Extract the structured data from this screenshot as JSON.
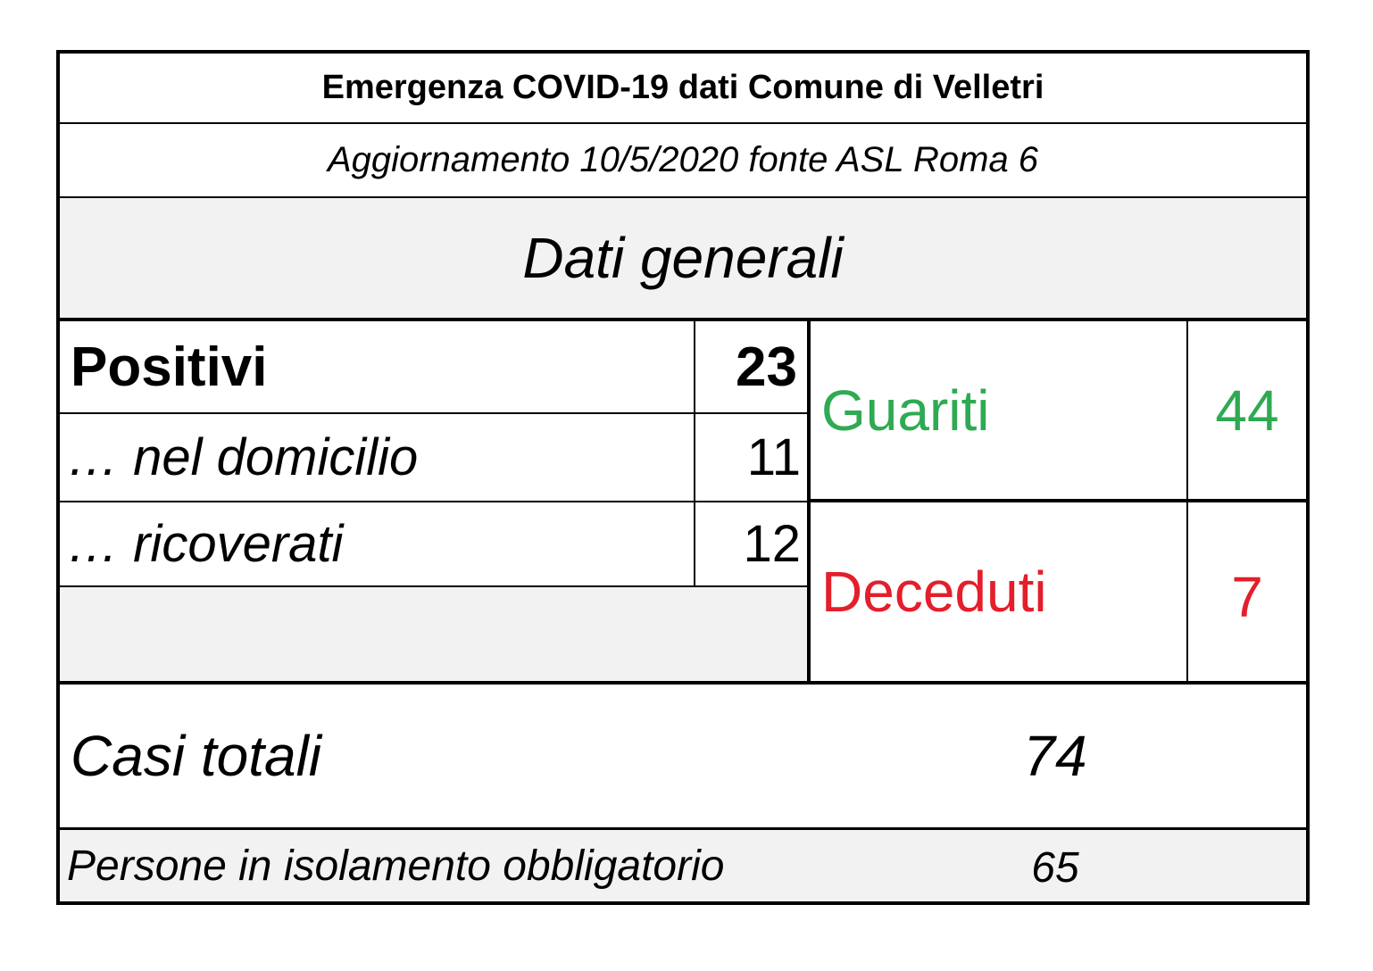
{
  "title": "Emergenza COVID-19 dati Comune di Velletri",
  "subtitle": "Aggiornamento 10/5/2020 fonte ASL Roma 6",
  "section": "Dati generali",
  "positivi": {
    "label": "Positivi",
    "value": "23"
  },
  "domicilio": {
    "label": "… nel domicilio",
    "value": "11"
  },
  "ricoverati": {
    "label": "… ricoverati",
    "value": "12"
  },
  "guariti": {
    "label": "Guariti",
    "value": "44"
  },
  "deceduti": {
    "label": "Deceduti",
    "value": "7"
  },
  "casi_totali": {
    "label": "Casi totali",
    "value": "74"
  },
  "isolamento": {
    "label": "Persone in isolamento obbligatorio",
    "value": "65"
  },
  "colors": {
    "guariti": "#2eaa52",
    "deceduti": "#e41e2b",
    "shaded": "#f2f2f2"
  }
}
